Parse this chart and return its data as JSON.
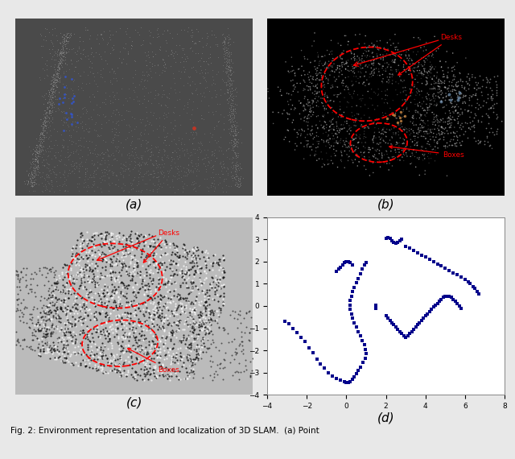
{
  "figure_title": "Fig. 2: Environment representation and localization of 3D SLAM.  (a) Point",
  "panels": [
    "(a)",
    "(b)",
    "(c)",
    "(d)"
  ],
  "scatter_xlim": [
    -4,
    8
  ],
  "scatter_ylim": [
    -4,
    4
  ],
  "scatter_xticks": [
    -4,
    -2,
    0,
    2,
    4,
    6,
    8
  ],
  "scatter_yticks": [
    -4,
    -3,
    -2,
    -1,
    0,
    1,
    2,
    3,
    4
  ],
  "scatter_color": "#00008B",
  "panel_a_bg": "#4a4a4a",
  "panel_b_bg": "#000000",
  "panel_c_bg": "#bbbbbb",
  "label_fontsize": 11,
  "scatter_points": [
    [
      -3.1,
      -0.7
    ],
    [
      -2.9,
      -0.8
    ],
    [
      -2.7,
      -1.0
    ],
    [
      -2.5,
      -1.2
    ],
    [
      -2.3,
      -1.4
    ],
    [
      -2.1,
      -1.6
    ],
    [
      -1.9,
      -1.9
    ],
    [
      -1.7,
      -2.1
    ],
    [
      -1.5,
      -2.4
    ],
    [
      -1.3,
      -2.6
    ],
    [
      -1.1,
      -2.8
    ],
    [
      -0.9,
      -3.0
    ],
    [
      -0.7,
      -3.15
    ],
    [
      -0.5,
      -3.25
    ],
    [
      -0.3,
      -3.35
    ],
    [
      -0.1,
      -3.4
    ],
    [
      0.0,
      -3.45
    ],
    [
      0.1,
      -3.45
    ],
    [
      0.2,
      -3.4
    ],
    [
      0.3,
      -3.3
    ],
    [
      0.4,
      -3.2
    ],
    [
      0.5,
      -3.05
    ],
    [
      0.6,
      -2.9
    ],
    [
      0.7,
      -2.75
    ],
    [
      0.85,
      -2.55
    ],
    [
      0.95,
      -2.35
    ],
    [
      1.0,
      -2.15
    ],
    [
      0.95,
      -1.95
    ],
    [
      0.9,
      -1.75
    ],
    [
      0.8,
      -1.55
    ],
    [
      0.7,
      -1.35
    ],
    [
      0.6,
      -1.15
    ],
    [
      0.5,
      -0.95
    ],
    [
      0.4,
      -0.75
    ],
    [
      0.3,
      -0.55
    ],
    [
      0.25,
      -0.35
    ],
    [
      0.2,
      -0.15
    ],
    [
      0.18,
      0.05
    ],
    [
      0.2,
      0.25
    ],
    [
      0.25,
      0.45
    ],
    [
      0.3,
      0.65
    ],
    [
      0.4,
      0.85
    ],
    [
      0.5,
      1.05
    ],
    [
      0.6,
      1.25
    ],
    [
      0.7,
      1.45
    ],
    [
      0.8,
      1.65
    ],
    [
      0.9,
      1.85
    ],
    [
      1.0,
      1.95
    ],
    [
      1.5,
      0.05
    ],
    [
      1.5,
      -0.1
    ],
    [
      2.0,
      3.05
    ],
    [
      2.1,
      3.1
    ],
    [
      2.2,
      3.05
    ],
    [
      2.3,
      2.95
    ],
    [
      2.4,
      2.88
    ],
    [
      2.5,
      2.82
    ],
    [
      2.6,
      2.88
    ],
    [
      2.7,
      2.95
    ],
    [
      2.8,
      3.02
    ],
    [
      2.0,
      -0.45
    ],
    [
      2.1,
      -0.55
    ],
    [
      2.2,
      -0.65
    ],
    [
      2.3,
      -0.75
    ],
    [
      2.4,
      -0.85
    ],
    [
      2.5,
      -0.95
    ],
    [
      2.6,
      -1.05
    ],
    [
      2.7,
      -1.15
    ],
    [
      2.8,
      -1.25
    ],
    [
      2.9,
      -1.35
    ],
    [
      3.0,
      -1.4
    ],
    [
      3.1,
      -1.35
    ],
    [
      3.2,
      -1.25
    ],
    [
      3.3,
      -1.15
    ],
    [
      3.4,
      -1.05
    ],
    [
      3.5,
      -0.95
    ],
    [
      3.6,
      -0.85
    ],
    [
      3.7,
      -0.75
    ],
    [
      3.8,
      -0.65
    ],
    [
      3.9,
      -0.55
    ],
    [
      4.0,
      -0.45
    ],
    [
      4.1,
      -0.35
    ],
    [
      4.2,
      -0.25
    ],
    [
      4.3,
      -0.15
    ],
    [
      4.4,
      -0.05
    ],
    [
      4.5,
      0.05
    ],
    [
      4.6,
      0.12
    ],
    [
      4.7,
      0.2
    ],
    [
      4.8,
      0.3
    ],
    [
      4.9,
      0.38
    ],
    [
      5.0,
      0.42
    ],
    [
      5.1,
      0.45
    ],
    [
      5.2,
      0.42
    ],
    [
      5.3,
      0.38
    ],
    [
      5.4,
      0.3
    ],
    [
      5.5,
      0.2
    ],
    [
      5.6,
      0.1
    ],
    [
      5.7,
      0.0
    ],
    [
      5.8,
      -0.1
    ],
    [
      3.0,
      2.7
    ],
    [
      3.2,
      2.6
    ],
    [
      3.4,
      2.5
    ],
    [
      3.6,
      2.4
    ],
    [
      3.8,
      2.3
    ],
    [
      4.0,
      2.2
    ],
    [
      4.2,
      2.1
    ],
    [
      4.4,
      2.0
    ],
    [
      4.6,
      1.9
    ],
    [
      4.8,
      1.8
    ],
    [
      5.0,
      1.7
    ],
    [
      5.2,
      1.6
    ],
    [
      5.4,
      1.5
    ],
    [
      5.6,
      1.4
    ],
    [
      5.8,
      1.3
    ],
    [
      6.0,
      1.2
    ],
    [
      6.15,
      1.1
    ],
    [
      6.25,
      1.0
    ],
    [
      6.4,
      0.88
    ],
    [
      6.5,
      0.78
    ],
    [
      6.6,
      0.65
    ],
    [
      6.7,
      0.55
    ],
    [
      -0.5,
      1.55
    ],
    [
      -0.4,
      1.65
    ],
    [
      -0.3,
      1.75
    ],
    [
      -0.2,
      1.85
    ],
    [
      -0.1,
      1.95
    ],
    [
      0.0,
      2.0
    ],
    [
      0.1,
      2.0
    ],
    [
      0.2,
      1.95
    ],
    [
      0.3,
      1.85
    ]
  ]
}
